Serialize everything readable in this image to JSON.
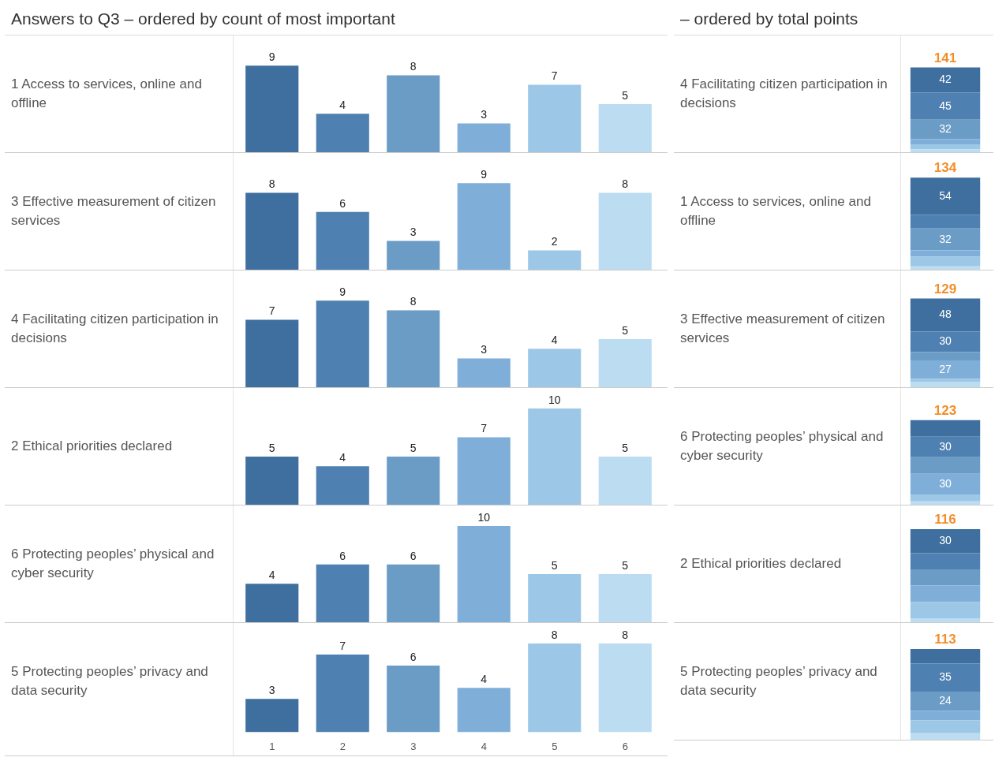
{
  "chart_data": [
    {
      "type": "other",
      "title": "Answers to Q3 – ordered by count of most important"
    },
    {
      "type": "other",
      "title": "– ordered by total points"
    },
    {
      "type": "bar",
      "title": "1 Access to services, online and offline",
      "categories": [
        "1",
        "2",
        "3",
        "4",
        "5",
        "6"
      ],
      "values": [
        9,
        4,
        8,
        3,
        7,
        5
      ],
      "colors": [
        "#3e6f9e",
        "#4f80b2",
        "#6a9cc6",
        "#7fafd8",
        "#9dc7e6",
        "#bcdcf1"
      ],
      "data_labels": true,
      "tick_labels": false
    },
    {
      "type": "bar",
      "title": "4 Facilitating citizen participation in decisions",
      "categories": [
        null
      ],
      "stacked": true,
      "tick_labels": false,
      "totals": [
        "141"
      ],
      "series": [
        {
          "color": "#bcdcf1",
          "values": [
            5
          ],
          "value_labels": [
            null
          ]
        },
        {
          "color": "#9dc7e6",
          "values": [
            8
          ],
          "value_labels": [
            null
          ]
        },
        {
          "color": "#7fafd8",
          "values": [
            9
          ],
          "value_labels": [
            null
          ]
        },
        {
          "color": "#6a9cc6",
          "values": [
            32
          ],
          "value_labels": [
            "32"
          ]
        },
        {
          "color": "#4f80b2",
          "values": [
            45
          ],
          "value_labels": [
            "45"
          ]
        },
        {
          "color": "#3e6f9e",
          "values": [
            42
          ],
          "value_labels": [
            "42"
          ]
        }
      ]
    },
    {
      "type": "bar",
      "title": "3 Effective measurement of citizen services",
      "categories": [
        "1",
        "2",
        "3",
        "4",
        "5",
        "6"
      ],
      "values": [
        8,
        6,
        3,
        9,
        2,
        8
      ],
      "colors": [
        "#3e6f9e",
        "#4f80b2",
        "#6a9cc6",
        "#7fafd8",
        "#9dc7e6",
        "#bcdcf1"
      ],
      "data_labels": true,
      "tick_labels": false
    },
    {
      "type": "bar",
      "title": "1 Access to services, online and offline",
      "categories": [
        null
      ],
      "stacked": true,
      "tick_labels": false,
      "totals": [
        "134"
      ],
      "series": [
        {
          "color": "#bcdcf1",
          "values": [
            5
          ],
          "value_labels": [
            null
          ]
        },
        {
          "color": "#9dc7e6",
          "values": [
            14
          ],
          "value_labels": [
            null
          ]
        },
        {
          "color": "#7fafd8",
          "values": [
            9
          ],
          "value_labels": [
            null
          ]
        },
        {
          "color": "#6a9cc6",
          "values": [
            32
          ],
          "value_labels": [
            "32"
          ]
        },
        {
          "color": "#4f80b2",
          "values": [
            20
          ],
          "value_labels": [
            null
          ]
        },
        {
          "color": "#3e6f9e",
          "values": [
            54
          ],
          "value_labels": [
            "54"
          ]
        }
      ]
    },
    {
      "type": "bar",
      "title": "4 Facilitating citizen participation in decisions",
      "categories": [
        "1",
        "2",
        "3",
        "4",
        "5",
        "6"
      ],
      "values": [
        7,
        9,
        8,
        3,
        4,
        5
      ],
      "colors": [
        "#3e6f9e",
        "#4f80b2",
        "#6a9cc6",
        "#7fafd8",
        "#9dc7e6",
        "#bcdcf1"
      ],
      "data_labels": true,
      "tick_labels": false
    },
    {
      "type": "bar",
      "title": "3 Effective measurement of citizen services",
      "categories": [
        null
      ],
      "stacked": true,
      "tick_labels": false,
      "totals": [
        "129"
      ],
      "series": [
        {
          "color": "#bcdcf1",
          "values": [
            8
          ],
          "value_labels": [
            null
          ]
        },
        {
          "color": "#9dc7e6",
          "values": [
            4
          ],
          "value_labels": [
            null
          ]
        },
        {
          "color": "#7fafd8",
          "values": [
            27
          ],
          "value_labels": [
            "27"
          ]
        },
        {
          "color": "#6a9cc6",
          "values": [
            12
          ],
          "value_labels": [
            null
          ]
        },
        {
          "color": "#4f80b2",
          "values": [
            30
          ],
          "value_labels": [
            "30"
          ]
        },
        {
          "color": "#3e6f9e",
          "values": [
            48
          ],
          "value_labels": [
            "48"
          ]
        }
      ]
    },
    {
      "type": "bar",
      "title": "2 Ethical priorities declared",
      "categories": [
        "1",
        "2",
        "3",
        "4",
        "5",
        "6"
      ],
      "values": [
        5,
        4,
        5,
        7,
        10,
        5
      ],
      "colors": [
        "#3e6f9e",
        "#4f80b2",
        "#6a9cc6",
        "#7fafd8",
        "#9dc7e6",
        "#bcdcf1"
      ],
      "data_labels": true,
      "tick_labels": false
    },
    {
      "type": "bar",
      "title": "6 Protecting peoples’ physical and cyber security",
      "categories": [
        null
      ],
      "stacked": true,
      "tick_labels": false,
      "totals": [
        "123"
      ],
      "series": [
        {
          "color": "#bcdcf1",
          "values": [
            5
          ],
          "value_labels": [
            null
          ]
        },
        {
          "color": "#9dc7e6",
          "values": [
            10
          ],
          "value_labels": [
            null
          ]
        },
        {
          "color": "#7fafd8",
          "values": [
            30
          ],
          "value_labels": [
            "30"
          ]
        },
        {
          "color": "#6a9cc6",
          "values": [
            24
          ],
          "value_labels": [
            null
          ]
        },
        {
          "color": "#4f80b2",
          "values": [
            30
          ],
          "value_labels": [
            "30"
          ]
        },
        {
          "color": "#3e6f9e",
          "values": [
            24
          ],
          "value_labels": [
            null
          ]
        }
      ]
    },
    {
      "type": "bar",
      "title": "6 Protecting peoples’ physical and cyber security",
      "categories": [
        "1",
        "2",
        "3",
        "4",
        "5",
        "6"
      ],
      "values": [
        4,
        6,
        6,
        10,
        5,
        5
      ],
      "colors": [
        "#3e6f9e",
        "#4f80b2",
        "#6a9cc6",
        "#7fafd8",
        "#9dc7e6",
        "#bcdcf1"
      ],
      "data_labels": true,
      "tick_labels": false
    },
    {
      "type": "bar",
      "title": "2 Ethical priorities declared",
      "categories": [
        null
      ],
      "stacked": true,
      "tick_labels": false,
      "totals": [
        "116"
      ],
      "series": [
        {
          "color": "#bcdcf1",
          "values": [
            5
          ],
          "value_labels": [
            null
          ]
        },
        {
          "color": "#9dc7e6",
          "values": [
            20
          ],
          "value_labels": [
            null
          ]
        },
        {
          "color": "#7fafd8",
          "values": [
            21
          ],
          "value_labels": [
            null
          ]
        },
        {
          "color": "#6a9cc6",
          "values": [
            20
          ],
          "value_labels": [
            null
          ]
        },
        {
          "color": "#4f80b2",
          "values": [
            20
          ],
          "value_labels": [
            null
          ]
        },
        {
          "color": "#3e6f9e",
          "values": [
            30
          ],
          "value_labels": [
            "30"
          ]
        }
      ]
    },
    {
      "type": "bar",
      "title": "5 Protecting peoples’ privacy and data security",
      "categories": [
        "1",
        "2",
        "3",
        "4",
        "5",
        "6"
      ],
      "values": [
        3,
        7,
        6,
        4,
        8,
        8
      ],
      "colors": [
        "#3e6f9e",
        "#4f80b2",
        "#6a9cc6",
        "#7fafd8",
        "#9dc7e6",
        "#bcdcf1"
      ],
      "data_labels": true,
      "tick_labels": "x"
    },
    {
      "type": "bar",
      "title": "5 Protecting peoples’ privacy and data security",
      "categories": [
        null
      ],
      "stacked": true,
      "tick_labels": false,
      "totals": [
        "113"
      ],
      "series": [
        {
          "color": "#bcdcf1",
          "values": [
            8
          ],
          "value_labels": [
            null
          ]
        },
        {
          "color": "#9dc7e6",
          "values": [
            16
          ],
          "value_labels": [
            null
          ]
        },
        {
          "color": "#7fafd8",
          "values": [
            12
          ],
          "value_labels": [
            null
          ]
        },
        {
          "color": "#6a9cc6",
          "values": [
            24
          ],
          "value_labels": [
            "24"
          ]
        },
        {
          "color": "#4f80b2",
          "values": [
            35
          ],
          "value_labels": [
            "35"
          ]
        },
        {
          "color": "#3e6f9e",
          "values": [
            18
          ],
          "value_labels": [
            null
          ]
        }
      ]
    }
  ]
}
